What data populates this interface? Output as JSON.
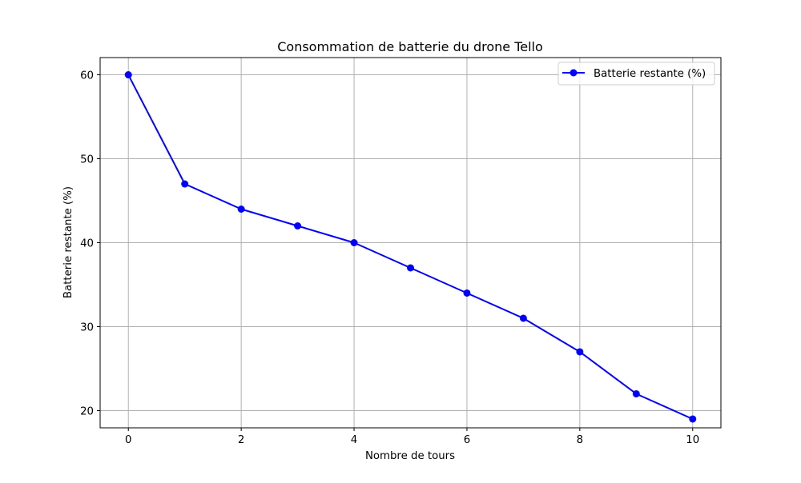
{
  "chart_data": {
    "type": "line",
    "title": "Consommation de batterie du drone Tello",
    "xlabel": "Nombre de tours",
    "ylabel": "Batterie restante (%)",
    "xlim": [
      -0.5,
      10.5
    ],
    "ylim": [
      17.95,
      62.05
    ],
    "xticks": [
      0,
      2,
      4,
      6,
      8,
      10
    ],
    "yticks": [
      20,
      30,
      40,
      50,
      60
    ],
    "grid": true,
    "legend_position": "upper right",
    "series": [
      {
        "name": "Batterie restante (%)",
        "color": "#0000ff",
        "marker": "circle",
        "x": [
          0,
          1,
          2,
          3,
          4,
          5,
          6,
          7,
          8,
          9,
          10
        ],
        "y": [
          60,
          47,
          44,
          42,
          40,
          37,
          34,
          31,
          27,
          22,
          19
        ]
      }
    ]
  }
}
